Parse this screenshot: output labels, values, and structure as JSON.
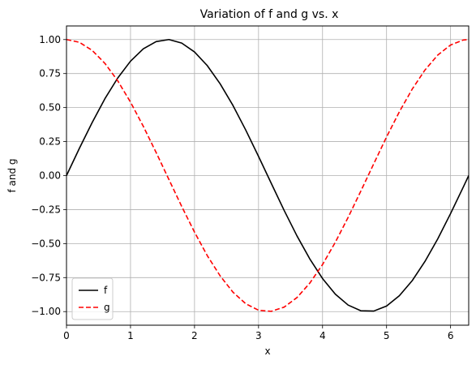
{
  "chart_data": {
    "type": "line",
    "title": "Variation of f and g vs. x",
    "xlabel": "x",
    "ylabel": "f and g",
    "xlim": [
      0,
      6.283185
    ],
    "ylim": [
      -1.1,
      1.1
    ],
    "xticks": [
      0,
      1,
      2,
      3,
      4,
      5,
      6
    ],
    "yticks": [
      -1.0,
      -0.75,
      -0.5,
      -0.25,
      0.0,
      0.25,
      0.5,
      0.75,
      1.0
    ],
    "xtick_labels": [
      "0",
      "1",
      "2",
      "3",
      "4",
      "5",
      "6"
    ],
    "ytick_labels": [
      "−1.00",
      "−0.75",
      "−0.50",
      "−0.25",
      "0.00",
      "0.25",
      "0.50",
      "0.75",
      "1.00"
    ],
    "grid": true,
    "legend": "lower-left",
    "series": [
      {
        "name": "f",
        "color": "#000000",
        "style": "solid",
        "x": [
          0.0,
          0.2,
          0.4,
          0.6,
          0.8,
          1.0,
          1.2,
          1.4,
          1.6,
          1.8,
          2.0,
          2.2,
          2.4,
          2.6,
          2.8,
          3.0,
          3.2,
          3.4,
          3.6,
          3.8,
          4.0,
          4.2,
          4.4,
          4.6,
          4.8,
          5.0,
          5.2,
          5.4,
          5.6,
          5.8,
          6.0,
          6.2,
          6.283
        ],
        "y": [
          0.0,
          0.199,
          0.389,
          0.565,
          0.717,
          0.841,
          0.932,
          0.985,
          1.0,
          0.974,
          0.909,
          0.808,
          0.675,
          0.516,
          0.335,
          0.141,
          -0.058,
          -0.256,
          -0.443,
          -0.612,
          -0.757,
          -0.872,
          -0.952,
          -0.994,
          -0.996,
          -0.959,
          -0.883,
          -0.773,
          -0.631,
          -0.465,
          -0.279,
          -0.083,
          0.0
        ]
      },
      {
        "name": "g",
        "color": "#ff0000",
        "style": "dashed",
        "x": [
          0.0,
          0.2,
          0.4,
          0.6,
          0.8,
          1.0,
          1.2,
          1.4,
          1.6,
          1.8,
          2.0,
          2.2,
          2.4,
          2.6,
          2.8,
          3.0,
          3.2,
          3.4,
          3.6,
          3.8,
          4.0,
          4.2,
          4.4,
          4.6,
          4.8,
          5.0,
          5.2,
          5.4,
          5.6,
          5.8,
          6.0,
          6.2,
          6.283
        ],
        "y": [
          1.0,
          0.98,
          0.921,
          0.825,
          0.697,
          0.54,
          0.362,
          0.17,
          -0.029,
          -0.227,
          -0.416,
          -0.589,
          -0.737,
          -0.857,
          -0.942,
          -0.99,
          -0.998,
          -0.967,
          -0.897,
          -0.791,
          -0.654,
          -0.49,
          -0.307,
          -0.112,
          0.087,
          0.284,
          0.469,
          0.635,
          0.776,
          0.886,
          0.96,
          0.997,
          1.0
        ]
      }
    ]
  }
}
